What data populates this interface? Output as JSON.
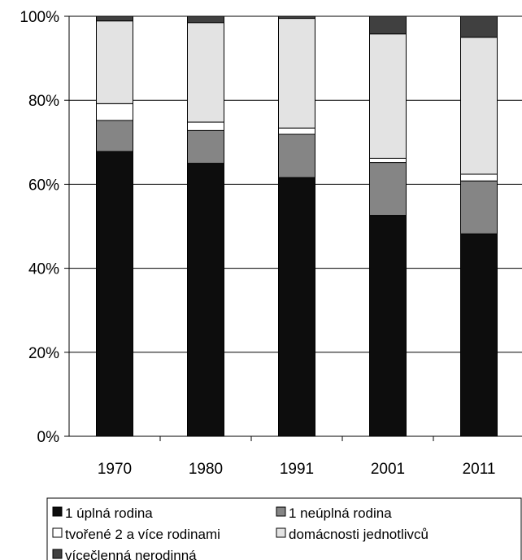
{
  "chart_data": {
    "type": "bar",
    "stacked": true,
    "categories": [
      "1970",
      "1980",
      "1991",
      "2001",
      "2011"
    ],
    "ylim": [
      0,
      100
    ],
    "yticks": [
      "0%",
      "20%",
      "40%",
      "60%",
      "80%",
      "100%"
    ],
    "grid": true,
    "legend_position": "bottom",
    "series": [
      {
        "name": "1 úplná rodina",
        "color": "#0d0d0d",
        "values": [
          67.8,
          65.0,
          61.6,
          52.6,
          48.2
        ]
      },
      {
        "name": "1 neúplná rodina",
        "color": "#858585",
        "values": [
          7.4,
          7.8,
          10.3,
          12.6,
          12.6
        ]
      },
      {
        "name": "tvořené 2 a více rodinami",
        "color": "#ffffff",
        "values": [
          4.0,
          2.0,
          1.5,
          1.0,
          1.6
        ]
      },
      {
        "name": "domácnosti jednotlivců",
        "color": "#e3e3e3",
        "values": [
          19.7,
          23.7,
          26.1,
          29.6,
          32.6
        ]
      },
      {
        "name": "vícečlenná nerodinná",
        "color": "#404040",
        "values": [
          1.1,
          1.5,
          0.5,
          4.2,
          5.0
        ]
      }
    ]
  }
}
